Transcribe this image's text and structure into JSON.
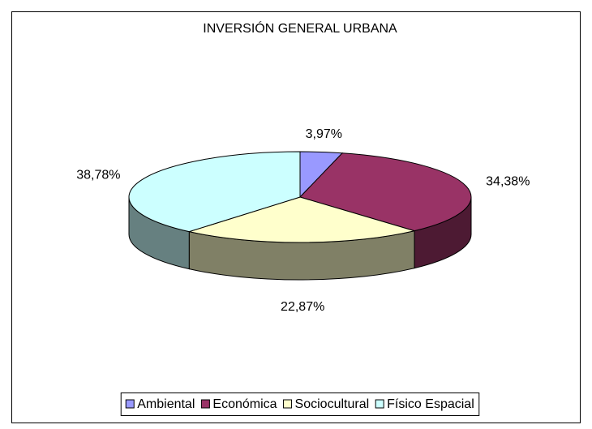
{
  "chart_data": {
    "type": "pie3d",
    "title": "INVERSIÓN GENERAL URBANA",
    "categories": [
      "Ambiental",
      "Económica",
      "Sociocultural",
      "Físico Espacial"
    ],
    "values": [
      3.97,
      34.38,
      22.87,
      38.78
    ],
    "value_labels": [
      "3,97%",
      "34,38%",
      "22,87%",
      "38,78%"
    ],
    "colors": [
      "#9999ff",
      "#993366",
      "#ffffcc",
      "#ccffff"
    ],
    "legend": "bottom"
  }
}
